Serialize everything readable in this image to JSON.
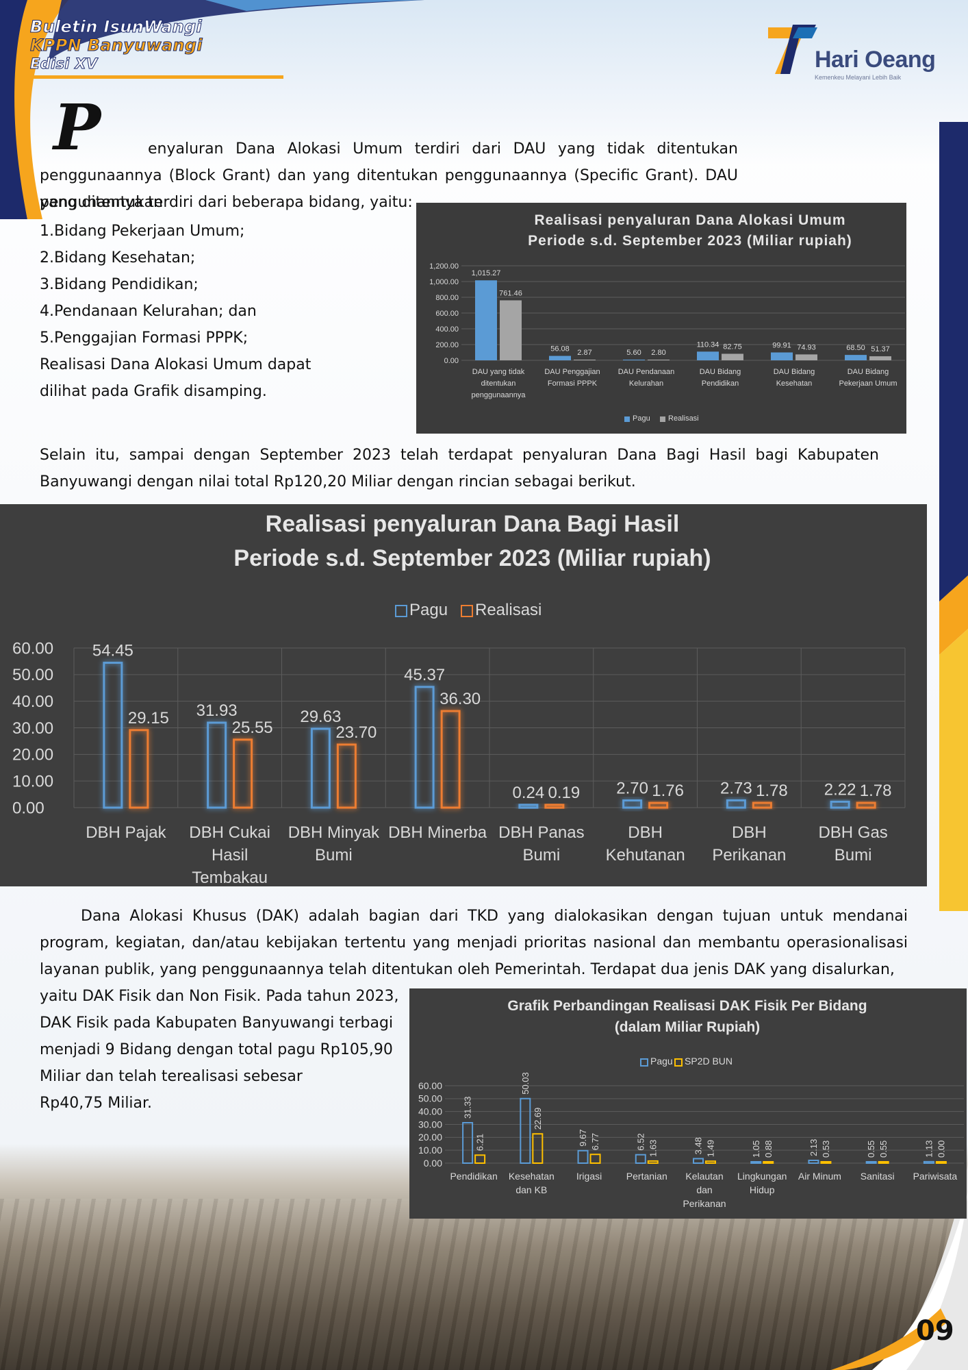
{
  "header": {
    "bulletin_line1": "Buletin IsunWangi",
    "bulletin_line2": "KPPN Banyuwangi",
    "bulletin_line3": "Edisi XV",
    "logo_name": "Hari Oeang",
    "logo_tagline": "Kemenkeu Melayani Lebih Baik"
  },
  "body": {
    "dropcap": "P",
    "para1": "enyaluran Dana Alokasi Umum terdiri dari DAU yang tidak ditentukan penggunaannya (Block Grant) dan yang ditentukan penggunaannya (Specific Grant). DAU yang ditentukan",
    "para1b": "pengunannya terdiri dari beberapa bidang, yaitu:",
    "list": [
      "1.Bidang Pekerjaan Umum;",
      "2.Bidang Kesehatan;",
      "3.Bidang Pendidikan;",
      "4.Pendanaan Kelurahan; dan",
      "5.Penggajian Formasi PPPK;",
      "Realisasi Dana Alokasi Umum dapat",
      "dilihat pada Grafik disamping."
    ],
    "para2": "Selain itu, sampai dengan September 2023 telah terdapat penyaluran Dana Bagi Hasil bagi Kabupaten Banyuwangi dengan nilai total Rp120,20 Miliar dengan rincian sebagai berikut.",
    "para3": "Dana Alokasi Khusus (DAK) adalah bagian dari TKD yang dialokasikan dengan tujuan untuk mendanai program, kegiatan, dan/atau kebijakan tertentu yang menjadi prioritas nasional dan membantu operasionalisasi layanan publik, yang penggunaannya telah ditentukan oleh Pemerintah. Terdapat dua jenis DAK yang disalurkan,",
    "para3b": [
      "yaitu DAK Fisik dan Non Fisik. Pada tahun 2023,",
      "DAK Fisik pada Kabupaten Banyuwangi terbagi",
      "menjadi 9 Bidang dengan total pagu Rp105,90",
      "Miliar dan telah terealisasi sebesar",
      "Rp40,75 Miliar."
    ],
    "page_number": "09"
  },
  "colors": {
    "navy": "#1d2a6b",
    "orange": "#f6a51d",
    "yellow": "#f7c531",
    "pagu_blue": "#5b9bd5",
    "realisasi_gray": "#a5a5a5",
    "realisasi_orange": "#ed7d31",
    "sp2d_yellow": "#ffc000"
  },
  "chart_data": [
    {
      "type": "bar",
      "title": [
        "Realisasi penyaluran Dana Alokasi Umum",
        "Periode s.d. September 2023 (Miliar rupiah)"
      ],
      "categories": [
        [
          "DAU yang tidak",
          "ditentukan",
          "penggunaannya"
        ],
        [
          "DAU Penggajian",
          "Formasi PPPK"
        ],
        [
          "DAU Pendanaan",
          "Kelurahan"
        ],
        [
          "DAU Bidang",
          "Pendidikan"
        ],
        [
          "DAU Bidang",
          "Kesehatan"
        ],
        [
          "DAU Bidang",
          "Pekerjaan Umum"
        ]
      ],
      "series": [
        {
          "name": "Pagu",
          "values": [
            1015.27,
            56.08,
            5.6,
            110.34,
            99.91,
            68.5
          ],
          "labels": [
            "1,015.27",
            "56.08",
            "5.60",
            "110.34",
            "99.91",
            "68.50"
          ]
        },
        {
          "name": "Realisasi",
          "values": [
            761.46,
            2.87,
            2.8,
            82.75,
            74.93,
            51.37
          ],
          "labels": [
            "761.46",
            "2.87",
            "2.80",
            "82.75",
            "74.93",
            "51.37"
          ]
        }
      ],
      "yticks": [
        "0.00",
        "200.00",
        "400.00",
        "600.00",
        "800.00",
        "1,000.00",
        "1,200.00"
      ],
      "ylim": [
        0,
        1200
      ],
      "legend": "bottom"
    },
    {
      "type": "bar",
      "title": [
        "Realisasi penyaluran Dana Bagi Hasil",
        "Periode s.d. September 2023 (Miliar rupiah)"
      ],
      "categories": [
        [
          "DBH Pajak"
        ],
        [
          "DBH Cukai",
          "Hasil",
          "Tembakau"
        ],
        [
          "DBH Minyak",
          "Bumi"
        ],
        [
          "DBH Minerba"
        ],
        [
          "DBH Panas",
          "Bumi"
        ],
        [
          "DBH",
          "Kehutanan"
        ],
        [
          "DBH",
          "Perikanan"
        ],
        [
          "DBH Gas",
          "Bumi"
        ]
      ],
      "series": [
        {
          "name": "Pagu",
          "values": [
            54.45,
            31.93,
            29.63,
            45.37,
            0.24,
            2.7,
            2.73,
            2.22
          ],
          "labels": [
            "54.45",
            "31.93",
            "29.63",
            "45.37",
            "0.24",
            "2.70",
            "2.73",
            "2.22"
          ]
        },
        {
          "name": "Realisasi",
          "values": [
            29.15,
            25.55,
            23.7,
            36.3,
            0.19,
            1.76,
            1.78,
            1.78
          ],
          "labels": [
            "29.15",
            "25.55",
            "23.70",
            "36.30",
            "0.19",
            "1.76",
            "1.78",
            "1.78"
          ]
        }
      ],
      "yticks": [
        "0.00",
        "10.00",
        "20.00",
        "30.00",
        "40.00",
        "50.00",
        "60.00"
      ],
      "ylim": [
        0,
        60
      ],
      "legend": "top"
    },
    {
      "type": "bar",
      "title": [
        "Grafik Perbandingan Realisasi DAK Fisik Per Bidang",
        "(dalam Miliar Rupiah)"
      ],
      "categories": [
        [
          "Pendidikan"
        ],
        [
          "Kesehatan",
          "dan KB"
        ],
        [
          "Irigasi"
        ],
        [
          "Pertanian"
        ],
        [
          "Kelautan",
          "dan",
          "Perikanan"
        ],
        [
          "Lingkungan",
          "Hidup"
        ],
        [
          "Air Minum"
        ],
        [
          "Sanitasi"
        ],
        [
          "Pariwisata"
        ]
      ],
      "series": [
        {
          "name": "Pagu",
          "values": [
            31.33,
            50.03,
            9.67,
            6.52,
            3.48,
            1.05,
            2.13,
            0.55,
            1.13
          ],
          "labels": [
            "31.33",
            "50.03",
            "9.67",
            "6.52",
            "3.48",
            "1.05",
            "2.13",
            "0.55",
            "1.13"
          ]
        },
        {
          "name": "SP2D BUN",
          "values": [
            6.21,
            22.69,
            6.77,
            1.63,
            1.49,
            0.88,
            0.53,
            0.55,
            0.0
          ],
          "labels": [
            "6.21",
            "22.69",
            "6.77",
            "1.63",
            "1.49",
            "0.88",
            "0.53",
            "0.55",
            "0.00"
          ]
        }
      ],
      "yticks": [
        "0.00",
        "10.00",
        "20.00",
        "30.00",
        "40.00",
        "50.00",
        "60.00"
      ],
      "ylim": [
        0,
        60
      ],
      "legend": "top"
    }
  ]
}
